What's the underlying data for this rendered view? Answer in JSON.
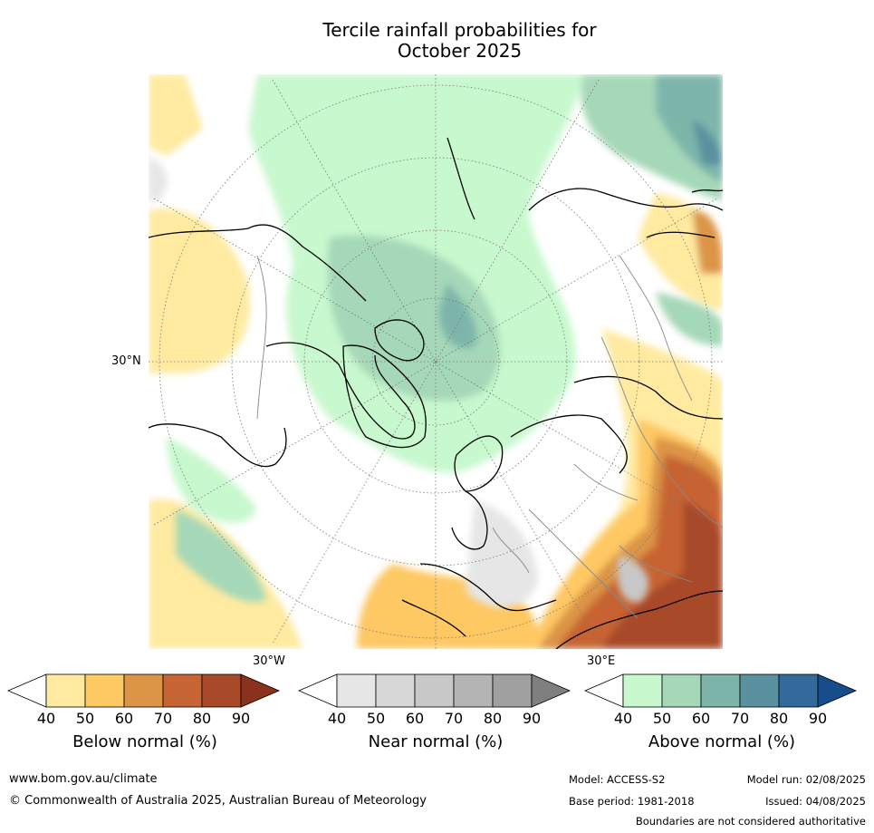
{
  "title": {
    "line1": "Tercile rainfall probabilities for",
    "line2": "October 2025"
  },
  "map": {
    "projection": "north-polar-stereographic",
    "lat_label": "30°N",
    "lon_label_west": "30°W",
    "lon_label_east": "30°E",
    "notable_regions": [
      "below normal 70-90% over Middle East, North Africa, Central Asia",
      "below normal 50-60% over western Europe and eastern North Pacific",
      "above normal 50-70% over Arctic, Greenland, Scandinavia, North Atlantic, eastern Asia"
    ]
  },
  "colorbars": [
    {
      "id": "below",
      "title": "Below normal (%)",
      "ticks": [
        "40",
        "50",
        "60",
        "70",
        "80",
        "90"
      ],
      "colors": [
        "#ffffff",
        "#ffeaa0",
        "#fec863",
        "#dc9446",
        "#c76433",
        "#a84a2a",
        "#8b321e"
      ]
    },
    {
      "id": "near",
      "title": "Near normal (%)",
      "ticks": [
        "40",
        "50",
        "60",
        "70",
        "80",
        "90"
      ],
      "colors": [
        "#ffffff",
        "#e6e6e6",
        "#d7d7d7",
        "#c8c8c8",
        "#b4b4b4",
        "#a0a0a0",
        "#7f7f7f"
      ]
    },
    {
      "id": "above",
      "title": "Above normal (%)",
      "ticks": [
        "40",
        "50",
        "60",
        "70",
        "80",
        "90"
      ],
      "colors": [
        "#ffffff",
        "#c8f8ce",
        "#a5d8b8",
        "#7db5ab",
        "#5a919f",
        "#326a9e",
        "#174d8a"
      ]
    }
  ],
  "footer": {
    "website": "www.bom.gov.au/climate",
    "copyright": "© Commonwealth of Australia 2025, Australian Bureau of Meteorology",
    "model": "Model: ACCESS-S2",
    "model_run": "Model run: 02/08/2025",
    "base_period": "Base period: 1981-2018",
    "issued": "Issued: 04/08/2025",
    "disclaimer": "Boundaries are not considered authoritative"
  }
}
